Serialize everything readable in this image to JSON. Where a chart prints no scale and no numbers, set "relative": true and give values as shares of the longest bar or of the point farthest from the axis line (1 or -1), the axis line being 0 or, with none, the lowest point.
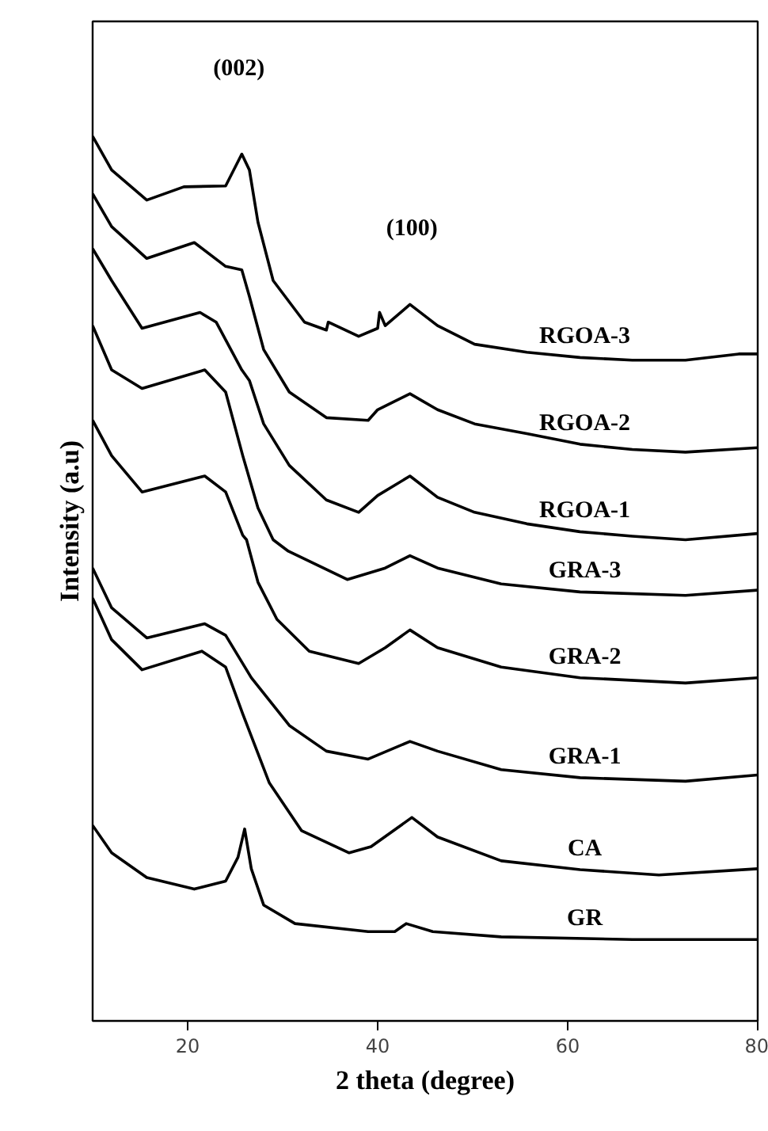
{
  "chart_data": {
    "type": "line",
    "relative": true,
    "xlabel": "2 theta (degree)",
    "ylabel": "Intensity (a.u)",
    "xlim": [
      10,
      80
    ],
    "xticks": [
      20,
      40,
      60,
      80
    ],
    "line_style": "solid",
    "annotations": [
      "(002)",
      "(100)"
    ],
    "series": [
      {
        "name": "RGOA-3",
        "color": "#000000",
        "x": [
          10,
          12,
          15.7,
          19.6,
          24,
          25.7,
          26.5,
          27.4,
          29,
          32.3,
          34.6,
          34.8,
          38,
          40,
          40.2,
          40.8,
          43.4,
          46.3,
          50.2,
          55.7,
          61.3,
          66.8,
          72.4,
          78,
          80
        ],
        "values": [
          1.0,
          0.962,
          0.928,
          0.943,
          0.944,
          0.98,
          0.962,
          0.903,
          0.837,
          0.79,
          0.781,
          0.79,
          0.774,
          0.783,
          0.801,
          0.786,
          0.81,
          0.786,
          0.765,
          0.756,
          0.75,
          0.747,
          0.747,
          0.754,
          0.754
        ]
      },
      {
        "name": "RGOA-2",
        "color": "#000000",
        "x": [
          10,
          12,
          15.7,
          20.7,
          24,
          25.7,
          26.5,
          28,
          30.7,
          34.6,
          39,
          40,
          43.4,
          46.3,
          50.2,
          55.7,
          61.3,
          66.8,
          72.4,
          80
        ],
        "values": [
          0.935,
          0.898,
          0.862,
          0.88,
          0.853,
          0.849,
          0.819,
          0.759,
          0.711,
          0.682,
          0.679,
          0.691,
          0.709,
          0.691,
          0.675,
          0.664,
          0.652,
          0.646,
          0.643,
          0.648
        ]
      },
      {
        "name": "RGOA-1",
        "color": "#000000",
        "x": [
          10,
          12,
          15.2,
          21.3,
          23,
          25.7,
          26.5,
          28,
          30.7,
          34.6,
          38,
          40,
          43.4,
          46.3,
          50.2,
          55.7,
          61.3,
          66.8,
          72.4,
          80
        ],
        "values": [
          0.873,
          0.837,
          0.783,
          0.801,
          0.79,
          0.736,
          0.724,
          0.675,
          0.628,
          0.589,
          0.575,
          0.594,
          0.616,
          0.592,
          0.575,
          0.562,
          0.553,
          0.548,
          0.544,
          0.551
        ]
      },
      {
        "name": "GRA-3",
        "color": "#000000",
        "x": [
          10,
          12,
          15.2,
          21.8,
          24,
          25.8,
          27.4,
          29,
          30.6,
          36.8,
          40.8,
          43.4,
          46.3,
          53,
          61.3,
          72.4,
          80
        ],
        "values": [
          0.786,
          0.736,
          0.715,
          0.736,
          0.711,
          0.639,
          0.58,
          0.544,
          0.531,
          0.499,
          0.512,
          0.526,
          0.512,
          0.494,
          0.485,
          0.481,
          0.487
        ]
      },
      {
        "name": "GRA-2",
        "color": "#000000",
        "x": [
          10,
          12,
          15.2,
          21.8,
          24,
          25.8,
          26.2,
          27.4,
          29.4,
          32.8,
          38,
          40.8,
          43.4,
          46.3,
          53,
          61.3,
          72.4,
          80
        ],
        "values": [
          0.679,
          0.639,
          0.598,
          0.616,
          0.598,
          0.549,
          0.544,
          0.496,
          0.454,
          0.418,
          0.404,
          0.422,
          0.442,
          0.422,
          0.4,
          0.388,
          0.382,
          0.388
        ]
      },
      {
        "name": "GRA-1",
        "color": "#000000",
        "x": [
          10,
          12,
          15.7,
          21.8,
          24,
          26.7,
          30.7,
          34.6,
          39,
          43.4,
          46.3,
          53,
          61.3,
          72.4,
          80
        ],
        "values": [
          0.512,
          0.467,
          0.433,
          0.449,
          0.436,
          0.388,
          0.334,
          0.305,
          0.296,
          0.316,
          0.305,
          0.284,
          0.275,
          0.271,
          0.278
        ]
      },
      {
        "name": "CA",
        "color": "#000000",
        "x": [
          10,
          12,
          15.2,
          21.5,
          24,
          25.8,
          28.6,
          32,
          37,
          39.3,
          43.6,
          46.3,
          53,
          61.3,
          69.6,
          80
        ],
        "values": [
          0.478,
          0.431,
          0.397,
          0.418,
          0.4,
          0.347,
          0.269,
          0.215,
          0.19,
          0.197,
          0.23,
          0.208,
          0.181,
          0.171,
          0.165,
          0.172
        ]
      },
      {
        "name": "GR",
        "color": "#000000",
        "x": [
          10,
          12,
          15.7,
          20.7,
          24,
          25.3,
          26,
          26.7,
          28,
          31.3,
          39,
          41.8,
          43,
          45.8,
          53,
          66.8,
          80
        ],
        "values": [
          0.221,
          0.19,
          0.162,
          0.149,
          0.158,
          0.185,
          0.217,
          0.172,
          0.131,
          0.11,
          0.101,
          0.101,
          0.11,
          0.101,
          0.095,
          0.092,
          0.092
        ]
      }
    ]
  }
}
